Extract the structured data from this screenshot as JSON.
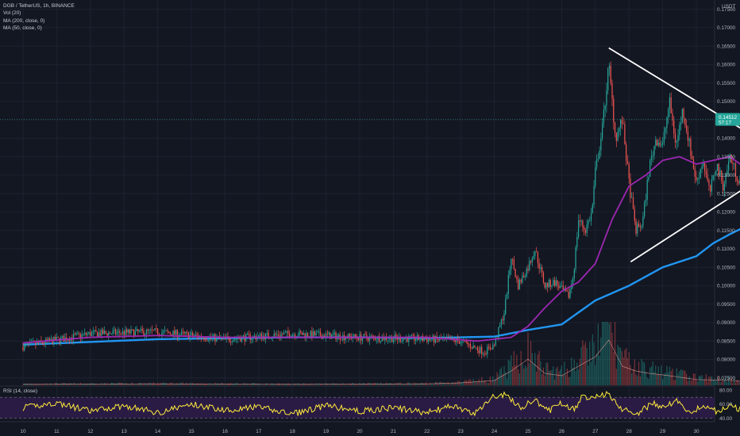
{
  "legend": {
    "symbol_line": "DGB / TetherUS, 1h, BINANCE",
    "vol_line": "Vol (20)",
    "ma200_line": "MA (200, close, 0)",
    "ma50_line": "MA (50, close, 0)",
    "rsi_line": "RSI (14, close)"
  },
  "colors": {
    "background": "#131722",
    "up_candle": "#26a69a",
    "down_candle": "#ef5350",
    "ma50": "#9c27b0",
    "ma200": "#2196f3",
    "rsi_line": "#ffeb3b",
    "rsi_band": "#2a1b45",
    "trendlines": "#ffffff",
    "price_tag": "#26a69a"
  },
  "chart_data": {
    "type": "candlestick",
    "symbol": "DGB / TetherUS",
    "interval": "1h",
    "exchange": "BINANCE",
    "price_axis": {
      "unit": "USDT",
      "ylim": [
        0.073,
        0.1775
      ],
      "ticks": [
        "0.17500",
        "0.17000",
        "0.16500",
        "0.16000",
        "0.15500",
        "0.15000",
        "0.14500",
        "0.14000",
        "0.13500",
        "0.13000",
        "0.12500",
        "0.12000",
        "0.11500",
        "0.11000",
        "0.10500",
        "0.10000",
        "0.09500",
        "0.09000",
        "0.08500",
        "0.08000",
        "0.07500"
      ],
      "last_price": "0.14512",
      "last_price_sub": "57:17"
    },
    "x_axis": {
      "ticks": [
        "10",
        "11",
        "12",
        "13",
        "14",
        "15",
        "16",
        "17",
        "18",
        "19",
        "20",
        "21",
        "22",
        "23",
        "24",
        "25",
        "26",
        "27",
        "28",
        "29",
        "30"
      ]
    },
    "candle_anchors": [
      [
        0,
        0.0835
      ],
      [
        2,
        0.087
      ],
      [
        4,
        0.0875
      ],
      [
        6,
        0.0855
      ],
      [
        8,
        0.087
      ],
      [
        10,
        0.086
      ],
      [
        12,
        0.0855
      ],
      [
        13,
        0.085
      ],
      [
        13.7,
        0.082
      ],
      [
        14,
        0.084
      ],
      [
        14.3,
        0.093
      ],
      [
        14.5,
        0.108
      ],
      [
        14.7,
        0.1
      ],
      [
        15,
        0.105
      ],
      [
        15.2,
        0.11
      ],
      [
        15.5,
        0.1
      ],
      [
        15.8,
        0.101
      ],
      [
        16,
        0.099
      ],
      [
        16.2,
        0.097
      ],
      [
        16.35,
        0.103
      ],
      [
        16.5,
        0.118
      ],
      [
        16.7,
        0.115
      ],
      [
        16.9,
        0.12
      ],
      [
        17,
        0.131
      ],
      [
        17.2,
        0.142
      ],
      [
        17.4,
        0.16
      ],
      [
        17.6,
        0.14
      ],
      [
        17.8,
        0.145
      ],
      [
        18,
        0.128
      ],
      [
        18.2,
        0.115
      ],
      [
        18.4,
        0.117
      ],
      [
        18.6,
        0.132
      ],
      [
        18.8,
        0.14
      ],
      [
        19,
        0.138
      ],
      [
        19.2,
        0.15
      ],
      [
        19.4,
        0.138
      ],
      [
        19.6,
        0.148
      ],
      [
        19.8,
        0.138
      ],
      [
        20,
        0.128
      ],
      [
        20.2,
        0.134
      ],
      [
        20.4,
        0.125
      ],
      [
        20.6,
        0.133
      ],
      [
        20.8,
        0.127
      ],
      [
        21,
        0.135
      ],
      [
        21.2,
        0.13
      ],
      [
        21.35,
        0.127
      ],
      [
        21.45,
        0.1451
      ]
    ],
    "ma50_anchors": [
      [
        0,
        0.0845
      ],
      [
        2,
        0.086
      ],
      [
        4,
        0.0865
      ],
      [
        6,
        0.086
      ],
      [
        8,
        0.086
      ],
      [
        10,
        0.086
      ],
      [
        12,
        0.086
      ],
      [
        13.5,
        0.085
      ],
      [
        14.5,
        0.086
      ],
      [
        15,
        0.089
      ],
      [
        15.5,
        0.094
      ],
      [
        16,
        0.0985
      ],
      [
        16.5,
        0.101
      ],
      [
        17,
        0.106
      ],
      [
        17.5,
        0.118
      ],
      [
        18,
        0.127
      ],
      [
        18.5,
        0.13
      ],
      [
        19,
        0.134
      ],
      [
        19.5,
        0.135
      ],
      [
        20,
        0.133
      ],
      [
        20.5,
        0.134
      ],
      [
        21,
        0.135
      ],
      [
        21.45,
        0.132
      ]
    ],
    "ma200_anchors": [
      [
        0,
        0.084
      ],
      [
        4,
        0.0855
      ],
      [
        8,
        0.086
      ],
      [
        10,
        0.086
      ],
      [
        12,
        0.0858
      ],
      [
        14,
        0.0862
      ],
      [
        15,
        0.088
      ],
      [
        16,
        0.0895
      ],
      [
        17,
        0.096
      ],
      [
        18,
        0.1
      ],
      [
        19,
        0.105
      ],
      [
        20,
        0.108
      ],
      [
        20.5,
        0.1115
      ],
      [
        21,
        0.114
      ],
      [
        21.45,
        0.116
      ]
    ],
    "volume_anchors": [
      [
        0,
        0.02
      ],
      [
        4,
        0.03
      ],
      [
        8,
        0.02
      ],
      [
        12,
        0.03
      ],
      [
        13,
        0.05
      ],
      [
        14,
        0.1
      ],
      [
        14.5,
        0.3
      ],
      [
        15,
        0.55
      ],
      [
        15.5,
        0.25
      ],
      [
        16,
        0.2
      ],
      [
        16.5,
        0.4
      ],
      [
        17,
        0.6
      ],
      [
        17.4,
        0.95
      ],
      [
        17.8,
        0.4
      ],
      [
        18.2,
        0.3
      ],
      [
        18.6,
        0.25
      ],
      [
        19.2,
        0.2
      ],
      [
        20,
        0.12
      ],
      [
        21,
        0.1
      ],
      [
        21.4,
        0.08
      ],
      [
        21.45,
        0.85
      ]
    ],
    "rsi": {
      "levels": [
        "80.00",
        "60.00",
        "40.00"
      ],
      "ylim": [
        35,
        85
      ],
      "band": [
        40,
        70
      ],
      "anchors": [
        [
          0,
          55
        ],
        [
          1,
          62
        ],
        [
          2,
          50
        ],
        [
          3,
          58
        ],
        [
          4,
          48
        ],
        [
          5,
          60
        ],
        [
          6,
          52
        ],
        [
          7,
          56
        ],
        [
          8,
          46
        ],
        [
          9,
          58
        ],
        [
          10,
          50
        ],
        [
          11,
          55
        ],
        [
          12,
          48
        ],
        [
          12.8,
          58
        ],
        [
          13.4,
          45
        ],
        [
          13.9,
          70
        ],
        [
          14.3,
          74
        ],
        [
          14.8,
          55
        ],
        [
          15.2,
          66
        ],
        [
          15.6,
          50
        ],
        [
          16,
          62
        ],
        [
          16.4,
          52
        ],
        [
          16.6,
          70
        ],
        [
          17,
          72
        ],
        [
          17.4,
          75
        ],
        [
          17.8,
          52
        ],
        [
          18.3,
          48
        ],
        [
          18.7,
          62
        ],
        [
          19,
          55
        ],
        [
          19.4,
          66
        ],
        [
          19.8,
          48
        ],
        [
          20.2,
          58
        ],
        [
          20.6,
          50
        ],
        [
          21,
          58
        ],
        [
          21.3,
          52
        ],
        [
          21.45,
          68
        ]
      ]
    },
    "annotations": {
      "triangle_upper": [
        [
          17.4,
          0.1645
        ],
        [
          22.8,
          0.1345
        ]
      ],
      "triangle_lower": [
        [
          18.05,
          0.1065
        ],
        [
          22.8,
          0.1345
        ]
      ]
    }
  }
}
